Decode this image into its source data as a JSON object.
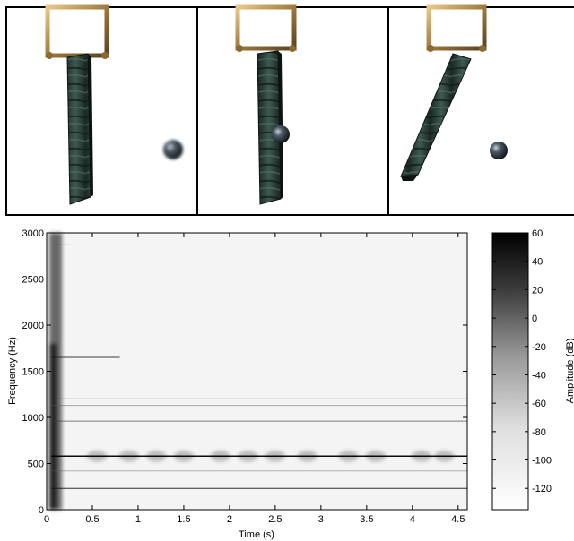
{
  "frames": [
    {
      "pendulum": "vertical",
      "ball": "approaching"
    },
    {
      "pendulum": "vertical",
      "ball": "impact"
    },
    {
      "pendulum": "swinging",
      "ball": "rebound"
    }
  ],
  "chart_data": {
    "type": "heatmap",
    "title": "",
    "xlabel": "Time (s)",
    "ylabel": "Frequency (Hz)",
    "xlim": [
      0,
      4.6
    ],
    "ylim": [
      0,
      3000
    ],
    "xticks": [
      0,
      0.5,
      1,
      1.5,
      2,
      2.5,
      3,
      3.5,
      4,
      4.5
    ],
    "xtick_labels": [
      "0",
      "0.5",
      "1",
      "1.5",
      "2",
      "2.5",
      "3",
      "3.5",
      "4",
      "4.5"
    ],
    "yticks": [
      0,
      500,
      1000,
      1500,
      2000,
      2500,
      3000
    ],
    "ytick_labels": [
      "0",
      "500",
      "1000",
      "1500",
      "2000",
      "2500",
      "3000"
    ],
    "colorbar": {
      "label": "Amplitude (dB)",
      "range": [
        -135,
        60
      ],
      "ticks": [
        60,
        40,
        20,
        0,
        -20,
        -40,
        -60,
        -80,
        -100,
        -120
      ],
      "tick_labels": [
        "60",
        "40",
        "20",
        "0",
        "-20",
        "-40",
        "-60",
        "-80",
        "-100",
        "-120"
      ],
      "colormap": "gray-reversed"
    },
    "harmonic_lines_hz": [
      {
        "freq": 580,
        "until_s": 4.6,
        "strength": 1.0
      },
      {
        "freq": 230,
        "until_s": 4.6,
        "strength": 0.85
      },
      {
        "freq": 1200,
        "until_s": 4.6,
        "strength": 0.6
      },
      {
        "freq": 960,
        "until_s": 4.6,
        "strength": 0.5
      },
      {
        "freq": 1650,
        "until_s": 0.8,
        "strength": 0.8
      },
      {
        "freq": 1130,
        "until_s": 4.6,
        "strength": 0.25
      },
      {
        "freq": 420,
        "until_s": 4.6,
        "strength": 0.2
      },
      {
        "freq": 2870,
        "until_s": 0.25,
        "strength": 0.5
      }
    ],
    "bounce_times_s": [
      0.55,
      0.9,
      1.2,
      1.5,
      1.9,
      2.2,
      2.5,
      2.85,
      3.3,
      3.6,
      4.1,
      4.35
    ],
    "bounce_band_hz": [
      520,
      640
    ],
    "onset_s": 0.05
  }
}
